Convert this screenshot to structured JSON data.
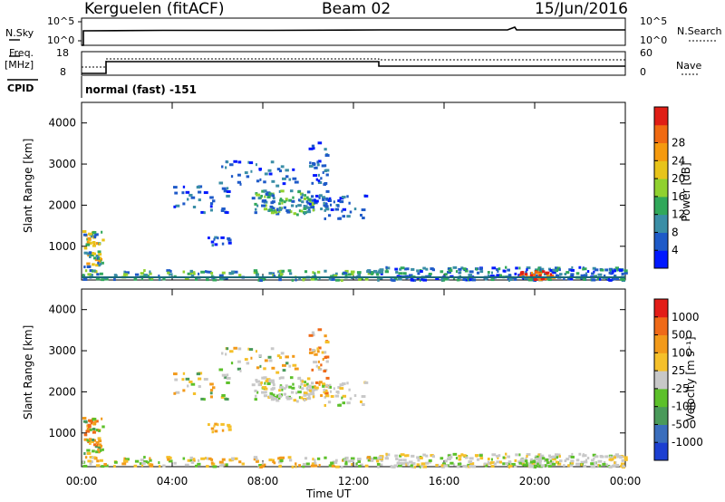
{
  "header": {
    "station": "Kerguelen (fitACF)",
    "beam": "Beam 02",
    "date": "15/Jun/2016"
  },
  "top_panels": {
    "nsky_label": "N.Sky",
    "nsearch_label": "N.Search",
    "freq_label_1": "Freq.",
    "freq_label_2": "[MHz]",
    "nave_label": "Nave",
    "cpid_label": "CPID",
    "noise_ticks_left": [
      "10^5",
      "10^0"
    ],
    "noise_ticks_right": [
      "10^5",
      "10^0"
    ],
    "freq_ticks_left": [
      "18",
      "8"
    ],
    "nave_ticks_right": [
      "60",
      "0"
    ],
    "cpid_text": "normal (fast) -151"
  },
  "chart_data": [
    {
      "type": "heatmap",
      "panel": "power",
      "ylabel": "Slant Range [km]",
      "xlabel": "",
      "ylim": [
        180,
        4500
      ],
      "yticks": [
        "1000",
        "2000",
        "3000",
        "4000"
      ],
      "colorbar_label": "Power [dB]",
      "colorbar_ticks": [
        "4",
        "8",
        "12",
        "16",
        "20",
        "24",
        "28"
      ],
      "colorbar_colors": [
        "#0018ff",
        "#1e5ac8",
        "#3a8ea6",
        "#31a85a",
        "#90d12f",
        "#e8c41a",
        "#f59a0e",
        "#f06a12",
        "#e01e16"
      ],
      "scatter_regions": [
        {
          "t": [
            0.0,
            1.0
          ],
          "r": [
            300,
            1400
          ],
          "level": "mixed"
        },
        {
          "t": [
            4.0,
            11.5
          ],
          "r": [
            1000,
            3600
          ],
          "level": "blue-green"
        },
        {
          "t": [
            0.0,
            24.0
          ],
          "r": [
            180,
            450
          ],
          "level": "ground-scatter"
        }
      ]
    },
    {
      "type": "heatmap",
      "panel": "velocity",
      "ylabel": "Slant Range [km]",
      "xlabel": "Time UT",
      "ylim": [
        180,
        4500
      ],
      "yticks": [
        "1000",
        "2000",
        "3000",
        "4000"
      ],
      "xticks": [
        "00:00",
        "04:00",
        "08:00",
        "12:00",
        "16:00",
        "20:00",
        "00:00"
      ],
      "xlim_hours": [
        0,
        24
      ],
      "colorbar_label": "Velocity [m s⁻¹]",
      "colorbar_ticks": [
        "1000",
        "500",
        "100",
        "25",
        "-25",
        "-100",
        "-500",
        "-1000"
      ],
      "colorbar_colors": [
        "#1c3fd1",
        "#3a6ebd",
        "#4a9a5a",
        "#5cc02a",
        "#c8c8c8",
        "#f5c02a",
        "#f29a1a",
        "#ef6a18",
        "#e21d18"
      ]
    }
  ]
}
